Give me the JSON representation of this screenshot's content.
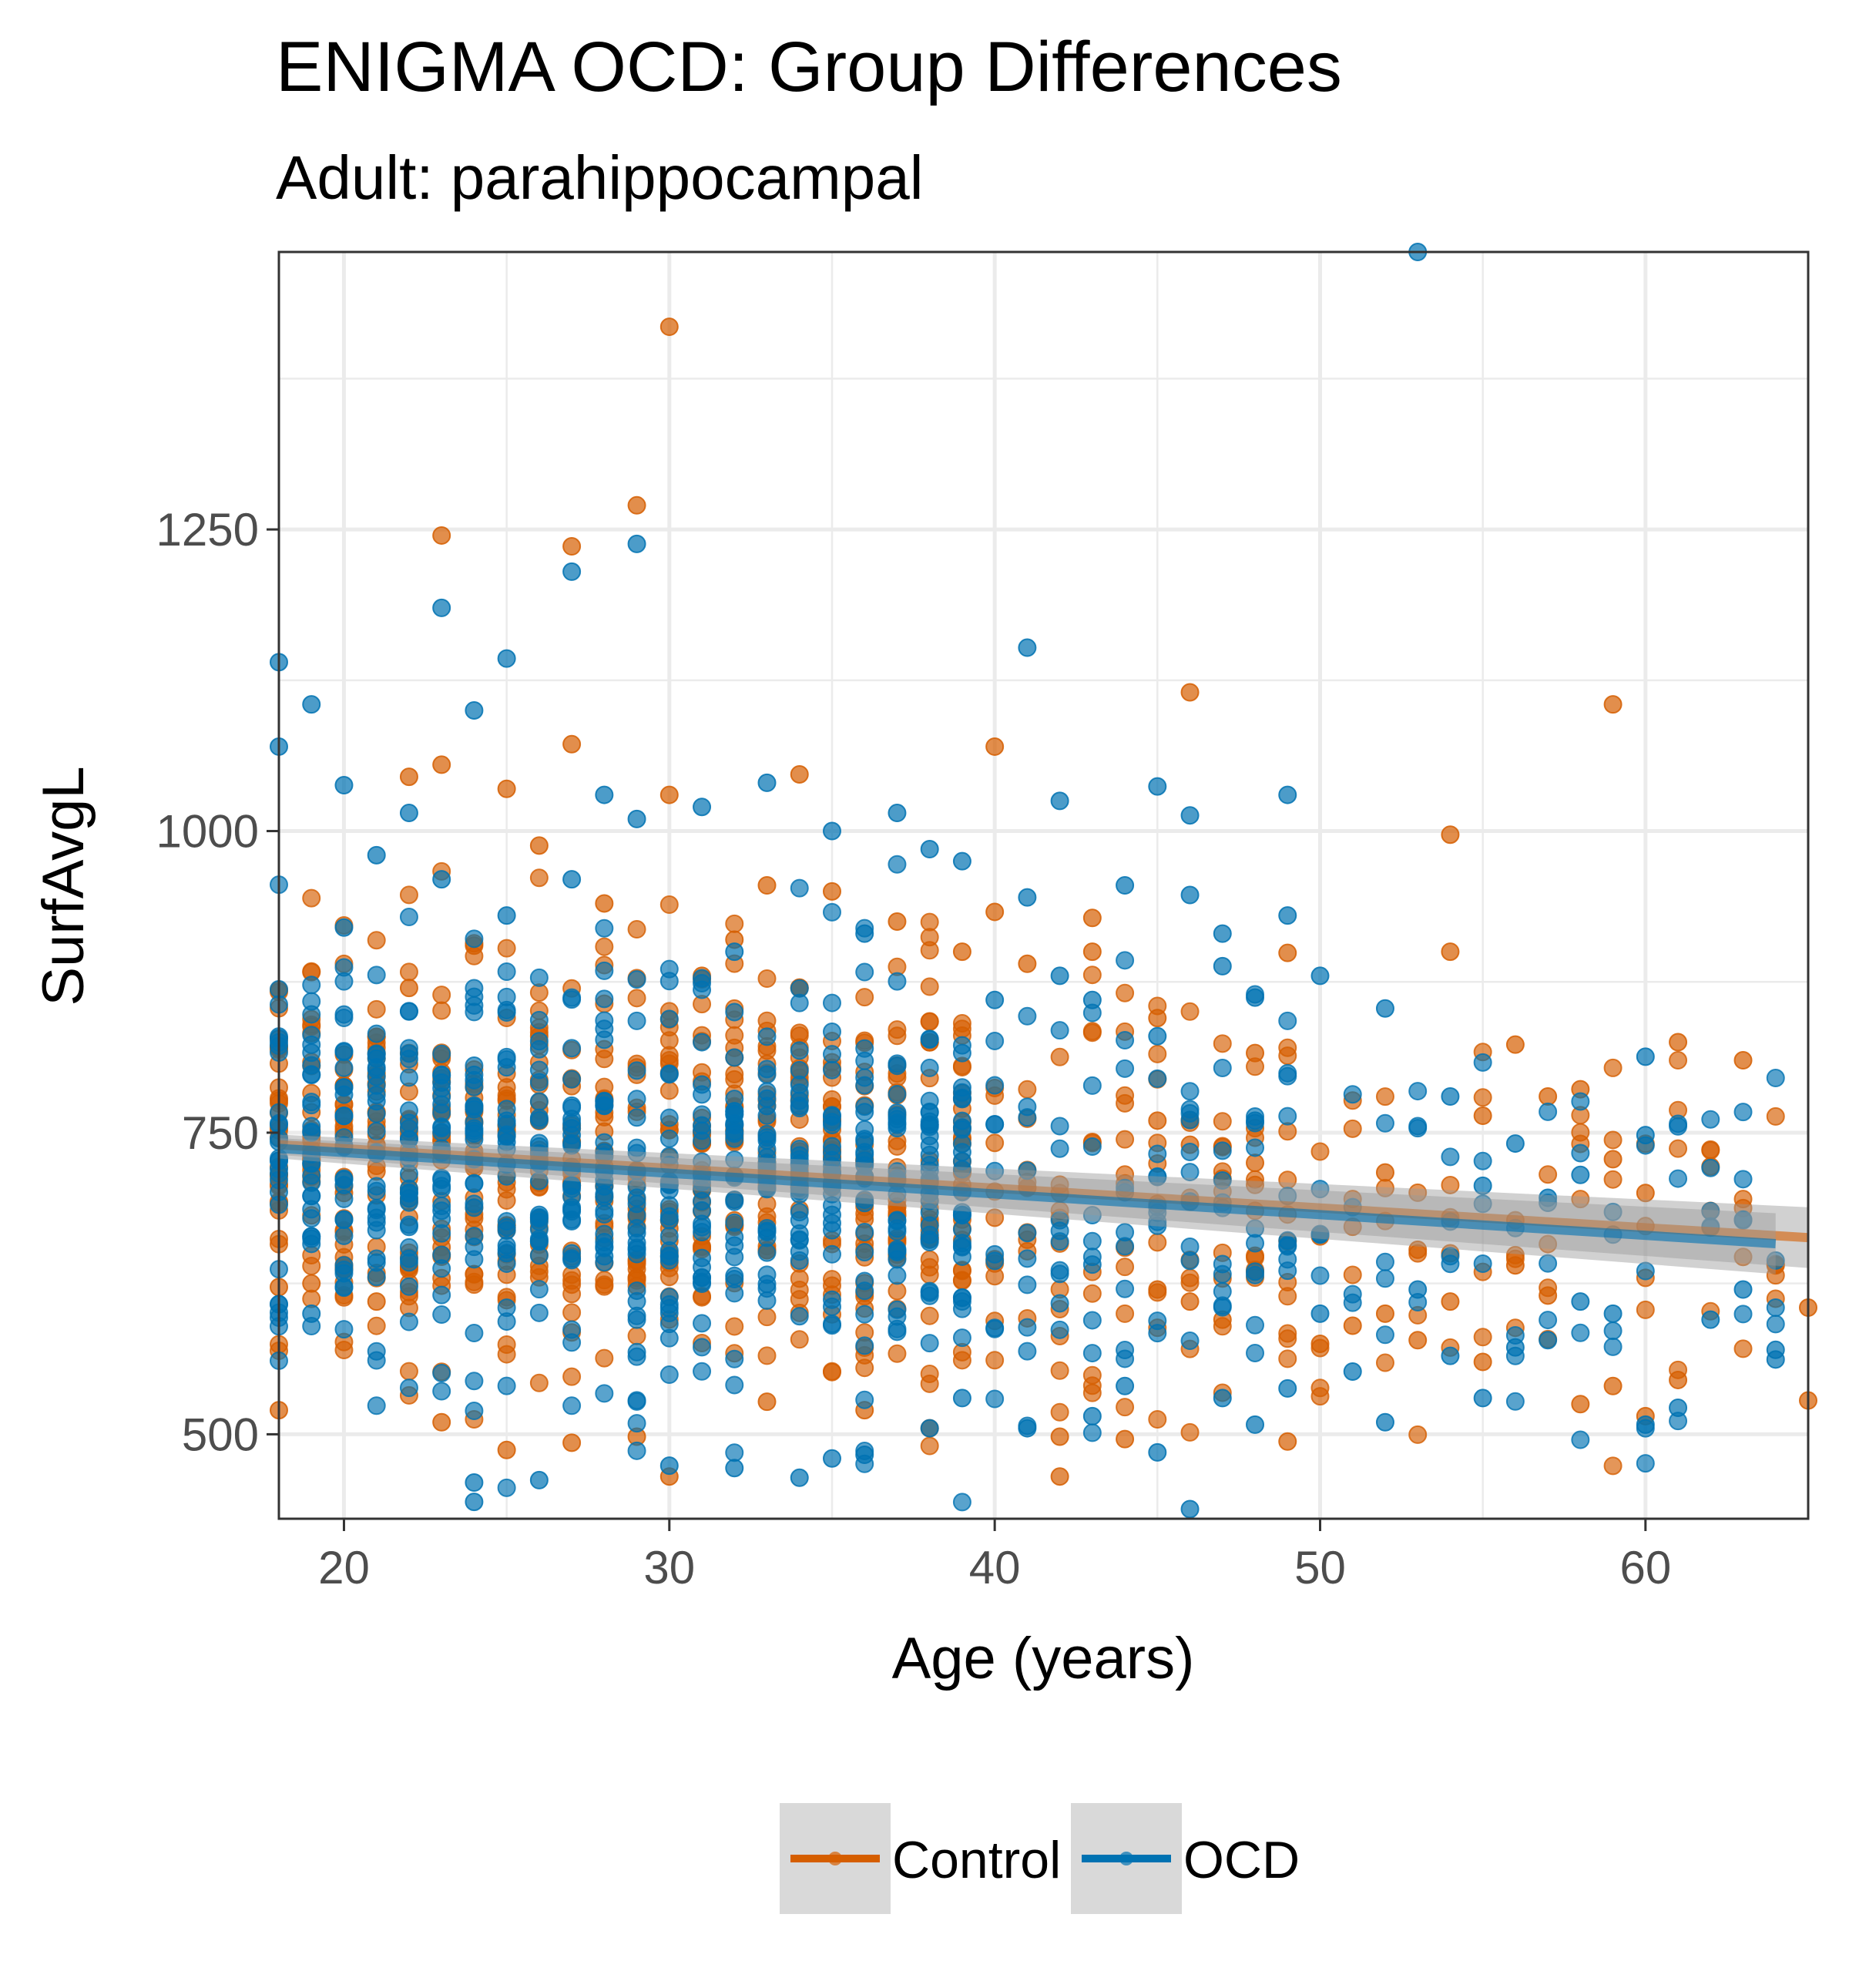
{
  "chart_data": {
    "type": "scatter",
    "title": "ENIGMA OCD: Group Differences",
    "subtitle": "Adult: parahippocampal",
    "xlabel": "Age (years)",
    "ylabel": "SurfAvgL",
    "xlim": [
      18,
      65
    ],
    "ylim": [
      430,
      1480
    ],
    "x_ticks": [
      20,
      30,
      40,
      50,
      60
    ],
    "x_tick_labels": [
      "20",
      "30",
      "40",
      "50",
      "60"
    ],
    "y_ticks": [
      500,
      750,
      1000,
      1250
    ],
    "y_tick_labels": [
      "500",
      "750",
      "1000",
      "1250"
    ],
    "grid": true,
    "legend_position": "bottom",
    "series": [
      {
        "name": "Control",
        "color": "#D55E00",
        "fit": {
          "x": [
            18,
            65
          ],
          "y": [
            740,
            663
          ],
          "ci": 14
        },
        "points": [
          [
            30,
            1418
          ],
          [
            29,
            1270
          ],
          [
            23,
            1245
          ],
          [
            27,
            1236
          ],
          [
            59,
            1105
          ],
          [
            46,
            1115
          ],
          [
            40,
            1070
          ],
          [
            27,
            1072
          ],
          [
            23,
            1055
          ],
          [
            34,
            1047
          ],
          [
            22,
            1045
          ],
          [
            30,
            1030
          ],
          [
            25,
            1035
          ],
          [
            54,
            997
          ],
          [
            26,
            988
          ],
          [
            33,
            955
          ],
          [
            40,
            933
          ],
          [
            43,
            928
          ],
          [
            49,
            899
          ],
          [
            54,
            900
          ],
          [
            45,
            845
          ],
          [
            48,
            816
          ],
          [
            61,
            825
          ],
          [
            56,
            823
          ],
          [
            63,
            810
          ],
          [
            57,
            780
          ],
          [
            58,
            786
          ],
          [
            55,
            764
          ],
          [
            59,
            728
          ],
          [
            62,
            722
          ],
          [
            60,
            700
          ],
          [
            52,
            717
          ],
          [
            44,
            708
          ],
          [
            47,
            712
          ],
          [
            42,
            700
          ],
          [
            53,
            653
          ],
          [
            51,
            672
          ],
          [
            50,
            664
          ],
          [
            49,
            660
          ],
          [
            48,
            648
          ],
          [
            64,
            640
          ],
          [
            65,
            605
          ],
          [
            65,
            528
          ],
          [
            61,
            545
          ],
          [
            59,
            540
          ],
          [
            58,
            525
          ],
          [
            60,
            515
          ],
          [
            57,
            615
          ],
          [
            56,
            640
          ],
          [
            55,
            560
          ],
          [
            54,
            610
          ],
          [
            53,
            578
          ],
          [
            52,
            600
          ],
          [
            51,
            590
          ],
          [
            50,
            575
          ],
          [
            49,
            494
          ],
          [
            47,
            595
          ],
          [
            46,
            610
          ],
          [
            45,
            620
          ],
          [
            44,
            496
          ],
          [
            42,
            465
          ],
          [
            42,
            498
          ],
          [
            38,
            505
          ],
          [
            36,
            520
          ],
          [
            33,
            527
          ],
          [
            30,
            465
          ],
          [
            29,
            498
          ],
          [
            27,
            493
          ],
          [
            25,
            487
          ],
          [
            23,
            510
          ],
          [
            18,
            520
          ],
          [
            18,
            622
          ],
          [
            19,
            625
          ],
          [
            20,
            700
          ],
          [
            21,
            610
          ],
          [
            22,
            870
          ],
          [
            24,
            905
          ],
          [
            26,
            830
          ],
          [
            28,
            940
          ],
          [
            31,
            880
          ],
          [
            32,
            910
          ],
          [
            34,
            870
          ],
          [
            35,
            950
          ],
          [
            37,
            925
          ],
          [
            39,
            900
          ],
          [
            41,
            890
          ],
          [
            43,
            900
          ],
          [
            45,
            760
          ],
          [
            46,
            740
          ],
          [
            48,
            725
          ]
        ]
      },
      {
        "name": "OCD",
        "color": "#0072B2",
        "fit": {
          "x": [
            18,
            64
          ],
          "y": [
            737,
            658
          ],
          "ci": 14
        },
        "points": [
          [
            53,
            1480
          ],
          [
            29,
            1238
          ],
          [
            27,
            1215
          ],
          [
            23,
            1185
          ],
          [
            41,
            1152
          ],
          [
            25,
            1143
          ],
          [
            18,
            1140
          ],
          [
            19,
            1105
          ],
          [
            24,
            1100
          ],
          [
            18,
            1070
          ],
          [
            20,
            1038
          ],
          [
            33,
            1040
          ],
          [
            45,
            1037
          ],
          [
            49,
            1030
          ],
          [
            42,
            1025
          ],
          [
            37,
            1015
          ],
          [
            46,
            1013
          ],
          [
            35,
            1000
          ],
          [
            39,
            975
          ],
          [
            38,
            985
          ],
          [
            44,
            955
          ],
          [
            46,
            947
          ],
          [
            41,
            945
          ],
          [
            49,
            930
          ],
          [
            47,
            915
          ],
          [
            47,
            888
          ],
          [
            48,
            862
          ],
          [
            52,
            853
          ],
          [
            50,
            880
          ],
          [
            54,
            780
          ],
          [
            60,
            813
          ],
          [
            60,
            748
          ],
          [
            55,
            706
          ],
          [
            56,
            741
          ],
          [
            57,
            696
          ],
          [
            58,
            715
          ],
          [
            62,
            685
          ],
          [
            63,
            678
          ],
          [
            64,
            570
          ],
          [
            64,
            562
          ],
          [
            63,
            620
          ],
          [
            62,
            595
          ],
          [
            61,
            522
          ],
          [
            60,
            508
          ],
          [
            59,
            600
          ],
          [
            58,
            610
          ],
          [
            57,
            578
          ],
          [
            56,
            572
          ],
          [
            55,
            530
          ],
          [
            54,
            565
          ],
          [
            53,
            620
          ],
          [
            52,
            510
          ],
          [
            51,
            552
          ],
          [
            50,
            600
          ],
          [
            49,
            538
          ],
          [
            48,
            508
          ],
          [
            47,
            530
          ],
          [
            46,
            438
          ],
          [
            45,
            485
          ],
          [
            44,
            540
          ],
          [
            43,
            515
          ],
          [
            41,
            505
          ],
          [
            39,
            530
          ],
          [
            38,
            505
          ],
          [
            36,
            483
          ],
          [
            35,
            480
          ],
          [
            34,
            464
          ],
          [
            32,
            472
          ],
          [
            30,
            474
          ],
          [
            26,
            462
          ],
          [
            24,
            460
          ],
          [
            24,
            444
          ],
          [
            20,
            427
          ],
          [
            19,
            600
          ],
          [
            20,
            920
          ],
          [
            21,
            980
          ],
          [
            22,
            1015
          ],
          [
            23,
            960
          ],
          [
            25,
            930
          ],
          [
            27,
            960
          ],
          [
            28,
            1030
          ],
          [
            29,
            1010
          ],
          [
            31,
            1020
          ],
          [
            32,
            900
          ],
          [
            36,
            915
          ],
          [
            40,
            860
          ],
          [
            42,
            880
          ],
          [
            43,
            860
          ],
          [
            45,
            830
          ],
          [
            48,
            760
          ]
        ]
      }
    ]
  }
}
